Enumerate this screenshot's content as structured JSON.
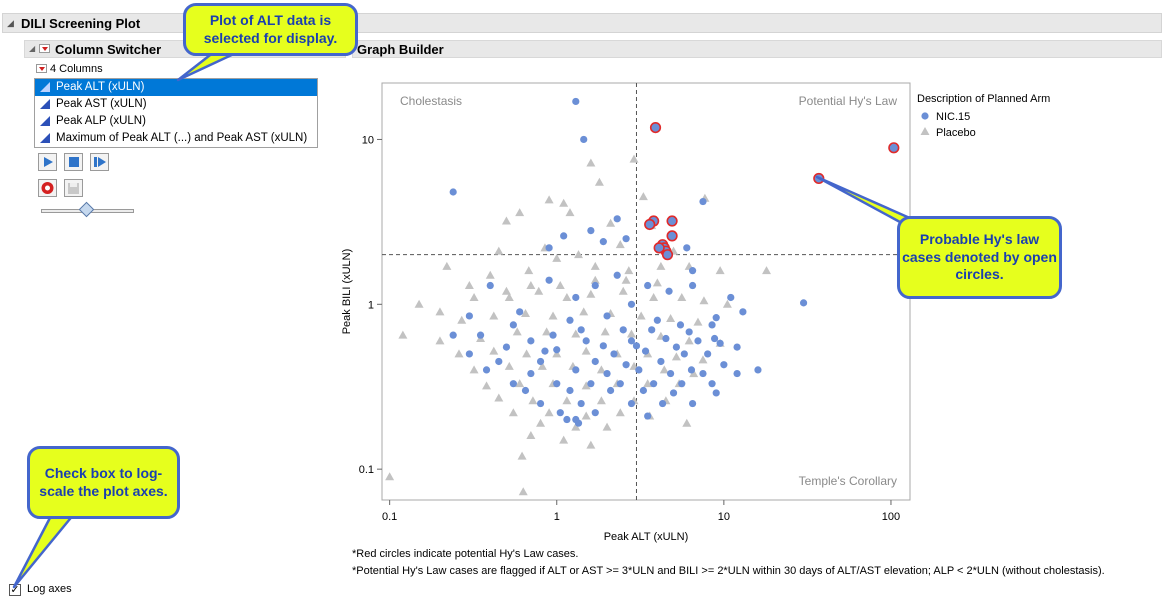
{
  "window": {
    "title": "DILI Screening Plot"
  },
  "column_switcher": {
    "title": "Column Switcher",
    "count_label": "4 Columns",
    "items": [
      "Peak ALT (xULN)",
      "Peak AST (xULN)",
      "Peak ALP (xULN)",
      "Maximum of Peak ALT (...) and Peak AST (xULN)"
    ],
    "selected_index": 0,
    "slider_value": 0.5
  },
  "graph_builder": {
    "title": "Graph Builder"
  },
  "log_axes": {
    "label": "Log axes",
    "checked": true,
    "mark": "✓"
  },
  "callouts": {
    "top": "Plot of ALT data is selected for display.",
    "right": "Probable Hy's law cases denoted by open circles.",
    "left": "Check box to log-scale the plot axes."
  },
  "notes": [
    "*Red circles indicate potential Hy's Law cases.",
    "*Potential Hy's Law cases are flagged if ALT or AST >= 3*ULN and BILI >= 2*ULN within 30 days of ALT/AST elevation; ALP < 2*ULN (without cholestasis)."
  ],
  "colors": {
    "nic": "#6b8fd6",
    "placebo": "#c2c2c2",
    "flag": "#e02a2a",
    "callout_bg": "#e6ff1d",
    "callout_border": "#4466cc"
  },
  "chart_data": {
    "type": "scatter",
    "x_scale": "log",
    "y_scale": "log",
    "xlabel": "Peak ALT (xULN)",
    "ylabel": "Peak BILI (xULN)",
    "xlim": [
      0.09,
      130
    ],
    "ylim": [
      0.065,
      22
    ],
    "x_ticks": [
      0.1,
      1,
      10,
      100
    ],
    "y_ticks": [
      0.1,
      1,
      10
    ],
    "x_tick_labels": [
      "0.1",
      "1",
      "10",
      "100"
    ],
    "y_tick_labels": [
      "0.1",
      "1",
      "10"
    ],
    "reference_lines": {
      "x": 3,
      "y": 2
    },
    "quadrant_labels": {
      "top_left": "Cholestasis",
      "top_right": "Potential Hy's Law",
      "bottom_right": "Temple's Corollary"
    },
    "legend": {
      "title": "Description of Planned Arm",
      "position": "top-right",
      "entries": [
        "NIC.15",
        "Placebo"
      ]
    },
    "series": [
      {
        "name": "NIC.15",
        "marker": "circle",
        "points": [
          [
            1.3,
            17
          ],
          [
            1.45,
            10
          ],
          [
            0.24,
            4.8
          ],
          [
            1.1,
            2.6
          ],
          [
            0.9,
            2.2
          ],
          [
            1.6,
            2.8
          ],
          [
            1.9,
            2.4
          ],
          [
            2.3,
            3.3
          ],
          [
            7.5,
            4.2
          ],
          [
            6,
            2.2
          ],
          [
            2.6,
            2.5
          ],
          [
            6.5,
            1.6
          ],
          [
            30,
            1.02
          ],
          [
            16,
            0.4
          ],
          [
            0.24,
            0.65
          ],
          [
            0.4,
            1.3
          ],
          [
            0.9,
            1.4
          ],
          [
            1.7,
            1.3
          ],
          [
            2.3,
            1.5
          ],
          [
            3.5,
            1.3
          ],
          [
            4.7,
            1.2
          ],
          [
            6.5,
            1.3
          ],
          [
            1.3,
            1.1
          ],
          [
            2.8,
            1.0
          ],
          [
            11,
            1.1
          ],
          [
            13,
            0.9
          ],
          [
            9,
            0.83
          ],
          [
            0.6,
            0.9
          ],
          [
            0.3,
            0.85
          ],
          [
            0.55,
            0.75
          ],
          [
            1.2,
            0.8
          ],
          [
            2,
            0.85
          ],
          [
            4,
            0.8
          ],
          [
            5.5,
            0.75
          ],
          [
            8.5,
            0.75
          ],
          [
            12,
            0.55
          ],
          [
            0.35,
            0.65
          ],
          [
            0.7,
            0.6
          ],
          [
            1.5,
            0.6
          ],
          [
            2.8,
            0.6
          ],
          [
            4.5,
            0.62
          ],
          [
            7,
            0.6
          ],
          [
            9.5,
            0.58
          ],
          [
            0.5,
            0.55
          ],
          [
            1,
            0.53
          ],
          [
            2.2,
            0.5
          ],
          [
            3.4,
            0.52
          ],
          [
            5.8,
            0.5
          ],
          [
            8,
            0.5
          ],
          [
            0.3,
            0.5
          ],
          [
            0.45,
            0.45
          ],
          [
            0.8,
            0.45
          ],
          [
            1.7,
            0.45
          ],
          [
            2.6,
            0.43
          ],
          [
            4.2,
            0.45
          ],
          [
            6.4,
            0.4
          ],
          [
            10,
            0.43
          ],
          [
            0.38,
            0.4
          ],
          [
            0.7,
            0.38
          ],
          [
            1.3,
            0.4
          ],
          [
            2,
            0.38
          ],
          [
            3.1,
            0.4
          ],
          [
            4.8,
            0.38
          ],
          [
            7.5,
            0.38
          ],
          [
            0.55,
            0.33
          ],
          [
            1,
            0.33
          ],
          [
            1.6,
            0.33
          ],
          [
            2.4,
            0.33
          ],
          [
            3.8,
            0.33
          ],
          [
            5.6,
            0.33
          ],
          [
            8.5,
            0.33
          ],
          [
            12,
            0.38
          ],
          [
            0.65,
            0.3
          ],
          [
            1.2,
            0.3
          ],
          [
            2.1,
            0.3
          ],
          [
            3.3,
            0.3
          ],
          [
            5,
            0.29
          ],
          [
            9,
            0.29
          ],
          [
            0.8,
            0.25
          ],
          [
            1.4,
            0.25
          ],
          [
            2.8,
            0.25
          ],
          [
            4.3,
            0.25
          ],
          [
            6.5,
            0.25
          ],
          [
            1.05,
            0.22
          ],
          [
            1.7,
            0.22
          ],
          [
            3.5,
            0.21
          ],
          [
            1.15,
            0.2
          ],
          [
            1.3,
            0.2
          ],
          [
            1.35,
            0.19
          ],
          [
            0.95,
            0.65
          ],
          [
            1.4,
            0.7
          ],
          [
            2.5,
            0.7
          ],
          [
            3.7,
            0.7
          ],
          [
            6.2,
            0.68
          ],
          [
            8.8,
            0.62
          ],
          [
            0.85,
            0.52
          ],
          [
            1.9,
            0.56
          ],
          [
            3,
            0.56
          ],
          [
            5.2,
            0.55
          ]
        ]
      },
      {
        "name": "Placebo",
        "marker": "triangle",
        "points": [
          [
            0.1,
            0.09
          ],
          [
            0.62,
            0.12
          ],
          [
            0.63,
            0.073
          ],
          [
            1.6,
            7.2
          ],
          [
            2.9,
            7.6
          ],
          [
            0.9,
            4.3
          ],
          [
            0.6,
            3.6
          ],
          [
            1.1,
            4.1
          ],
          [
            1.8,
            5.5
          ],
          [
            3.3,
            4.5
          ],
          [
            7.7,
            4.4
          ],
          [
            0.5,
            3.2
          ],
          [
            1.2,
            3.6
          ],
          [
            2.1,
            3.1
          ],
          [
            0.22,
            1.7
          ],
          [
            0.45,
            2.1
          ],
          [
            0.85,
            2.2
          ],
          [
            1.35,
            2.0
          ],
          [
            2.4,
            2.3
          ],
          [
            5,
            2.1
          ],
          [
            3.7,
            3.0
          ],
          [
            0.4,
            1.5
          ],
          [
            0.68,
            1.6
          ],
          [
            1.0,
            1.9
          ],
          [
            1.7,
            1.7
          ],
          [
            2.7,
            1.6
          ],
          [
            4.2,
            1.7
          ],
          [
            6.2,
            1.7
          ],
          [
            9.5,
            1.6
          ],
          [
            18,
            1.6
          ],
          [
            0.15,
            1.0
          ],
          [
            0.2,
            0.9
          ],
          [
            0.32,
            1.1
          ],
          [
            0.52,
            1.1
          ],
          [
            0.78,
            1.2
          ],
          [
            1.15,
            1.1
          ],
          [
            1.6,
            1.15
          ],
          [
            2.5,
            1.2
          ],
          [
            3.8,
            1.1
          ],
          [
            5.6,
            1.1
          ],
          [
            7.6,
            1.05
          ],
          [
            10.5,
            1.0
          ],
          [
            0.27,
            0.8
          ],
          [
            0.42,
            0.85
          ],
          [
            0.65,
            0.88
          ],
          [
            0.95,
            0.85
          ],
          [
            1.45,
            0.9
          ],
          [
            2.1,
            0.88
          ],
          [
            3.2,
            0.85
          ],
          [
            4.8,
            0.82
          ],
          [
            7,
            0.78
          ],
          [
            0.12,
            0.65
          ],
          [
            0.2,
            0.6
          ],
          [
            0.35,
            0.62
          ],
          [
            0.58,
            0.68
          ],
          [
            0.87,
            0.68
          ],
          [
            1.3,
            0.66
          ],
          [
            1.95,
            0.68
          ],
          [
            2.8,
            0.66
          ],
          [
            4.2,
            0.64
          ],
          [
            6.2,
            0.6
          ],
          [
            9.5,
            0.58
          ],
          [
            0.26,
            0.5
          ],
          [
            0.42,
            0.52
          ],
          [
            0.66,
            0.5
          ],
          [
            1.0,
            0.5
          ],
          [
            1.5,
            0.52
          ],
          [
            2.3,
            0.5
          ],
          [
            3.5,
            0.5
          ],
          [
            5.2,
            0.48
          ],
          [
            7.5,
            0.46
          ],
          [
            0.32,
            0.4
          ],
          [
            0.52,
            0.42
          ],
          [
            0.82,
            0.42
          ],
          [
            1.25,
            0.42
          ],
          [
            1.85,
            0.4
          ],
          [
            2.9,
            0.42
          ],
          [
            4.4,
            0.4
          ],
          [
            6.6,
            0.38
          ],
          [
            0.38,
            0.32
          ],
          [
            0.6,
            0.33
          ],
          [
            0.95,
            0.33
          ],
          [
            1.5,
            0.32
          ],
          [
            2.3,
            0.33
          ],
          [
            3.5,
            0.33
          ],
          [
            5.4,
            0.33
          ],
          [
            0.45,
            0.27
          ],
          [
            0.72,
            0.26
          ],
          [
            1.15,
            0.26
          ],
          [
            1.85,
            0.26
          ],
          [
            2.9,
            0.26
          ],
          [
            4.5,
            0.26
          ],
          [
            0.55,
            0.22
          ],
          [
            0.9,
            0.22
          ],
          [
            1.5,
            0.21
          ],
          [
            2.4,
            0.22
          ],
          [
            3.6,
            0.21
          ],
          [
            0.8,
            0.19
          ],
          [
            1.3,
            0.18
          ],
          [
            2.0,
            0.18
          ],
          [
            6.0,
            0.19
          ],
          [
            0.7,
            0.16
          ],
          [
            1.1,
            0.15
          ],
          [
            1.6,
            0.14
          ],
          [
            0.7,
            1.3
          ],
          [
            1.05,
            1.3
          ],
          [
            1.7,
            1.4
          ],
          [
            2.6,
            1.4
          ],
          [
            4.0,
            1.35
          ],
          [
            0.5,
            1.2
          ],
          [
            0.3,
            1.3
          ]
        ]
      }
    ],
    "flagged": [
      [
        3.9,
        11.8
      ],
      [
        104,
        8.9
      ],
      [
        37,
        5.8
      ],
      [
        3.8,
        3.2
      ],
      [
        4.9,
        3.2
      ],
      [
        3.6,
        3.05
      ],
      [
        4.9,
        2.6
      ],
      [
        4.3,
        2.3
      ],
      [
        4.4,
        2.2
      ],
      [
        4.5,
        2.1
      ],
      [
        4.6,
        2.0
      ],
      [
        4.1,
        2.2
      ]
    ]
  }
}
